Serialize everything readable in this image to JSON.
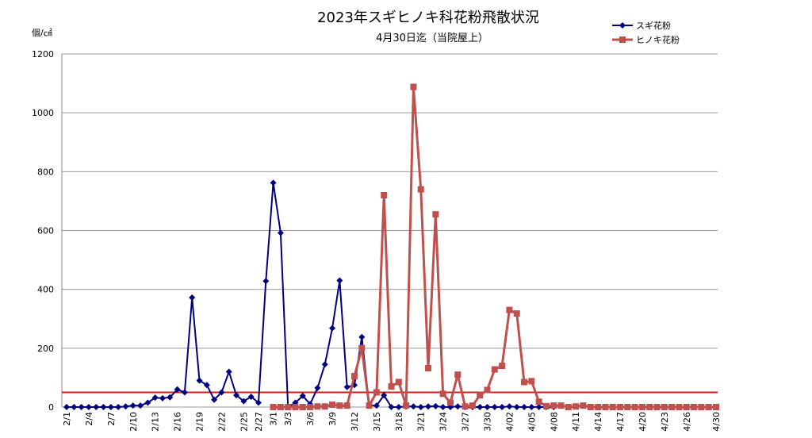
{
  "chart_data": {
    "type": "line",
    "title": "2023年スギヒノキ科花粉飛散状況",
    "subtitle": "4月30日迄（当院屋上）",
    "y_label": "個/㎠",
    "categories": [
      "2/1",
      null,
      null,
      "2/4",
      null,
      null,
      "2/7",
      null,
      null,
      "2/10",
      null,
      null,
      "2/13",
      null,
      null,
      "2/16",
      null,
      null,
      "2/19",
      null,
      null,
      "2/22",
      null,
      null,
      "2/25",
      null,
      "2/27",
      null,
      "3/1",
      null,
      "3/3",
      null,
      null,
      "3/6",
      null,
      null,
      "3/9",
      null,
      null,
      "3/12",
      null,
      null,
      "3/15",
      null,
      null,
      "3/18",
      null,
      null,
      "3/21",
      null,
      null,
      "3/24",
      null,
      null,
      "3/27",
      null,
      null,
      "3/30",
      null,
      null,
      "4/02",
      null,
      null,
      "4/05",
      null,
      null,
      "4/08",
      null,
      null,
      "4/11",
      null,
      null,
      "4/14",
      null,
      null,
      "4/17",
      null,
      null,
      "4/20",
      null,
      null,
      "4/23",
      null,
      null,
      "4/26",
      null,
      null,
      null,
      "4/30"
    ],
    "series": [
      {
        "name": "スギ花粉",
        "color": "#000080",
        "marker": "diamond",
        "values": [
          0,
          0,
          0,
          0,
          0,
          0,
          0,
          0,
          2,
          5,
          5,
          15,
          32,
          30,
          33,
          60,
          50,
          372,
          90,
          75,
          25,
          50,
          120,
          40,
          20,
          35,
          15,
          428,
          762,
          592,
          0,
          15,
          38,
          10,
          65,
          145,
          268,
          430,
          68,
          75,
          238,
          5,
          5,
          40,
          0,
          0,
          2,
          2,
          0,
          2,
          3,
          0,
          0,
          2,
          0,
          0,
          0,
          0,
          0,
          0,
          2,
          0,
          0,
          0,
          0,
          0,
          0,
          null,
          null,
          null,
          null,
          null,
          null,
          null,
          null,
          null,
          null,
          null,
          null,
          null,
          null,
          null,
          null,
          null,
          null,
          null,
          null,
          null,
          null
        ]
      },
      {
        "name": "ヒノキ花粉",
        "color": "#c0504d",
        "marker": "square",
        "values": [
          null,
          null,
          null,
          null,
          null,
          null,
          null,
          null,
          null,
          null,
          null,
          null,
          null,
          null,
          null,
          null,
          null,
          null,
          null,
          null,
          null,
          null,
          null,
          null,
          null,
          null,
          null,
          null,
          0,
          0,
          0,
          0,
          0,
          0,
          2,
          2,
          8,
          5,
          5,
          105,
          200,
          5,
          50,
          720,
          70,
          85,
          5,
          1088,
          740,
          132,
          655,
          45,
          15,
          110,
          2,
          5,
          40,
          58,
          128,
          140,
          330,
          318,
          85,
          88,
          18,
          3,
          5,
          5,
          0,
          2,
          5,
          0,
          0,
          0,
          0,
          0,
          0,
          0,
          0,
          0,
          0,
          0,
          0,
          0,
          0,
          0,
          0,
          0,
          0
        ]
      }
    ],
    "threshold": 50,
    "threshold_color": "#d02020",
    "ylim": [
      0,
      1200
    ],
    "yticks": [
      0,
      200,
      400,
      600,
      800,
      1000,
      1200
    ],
    "grid": true,
    "legend": "top-right"
  }
}
